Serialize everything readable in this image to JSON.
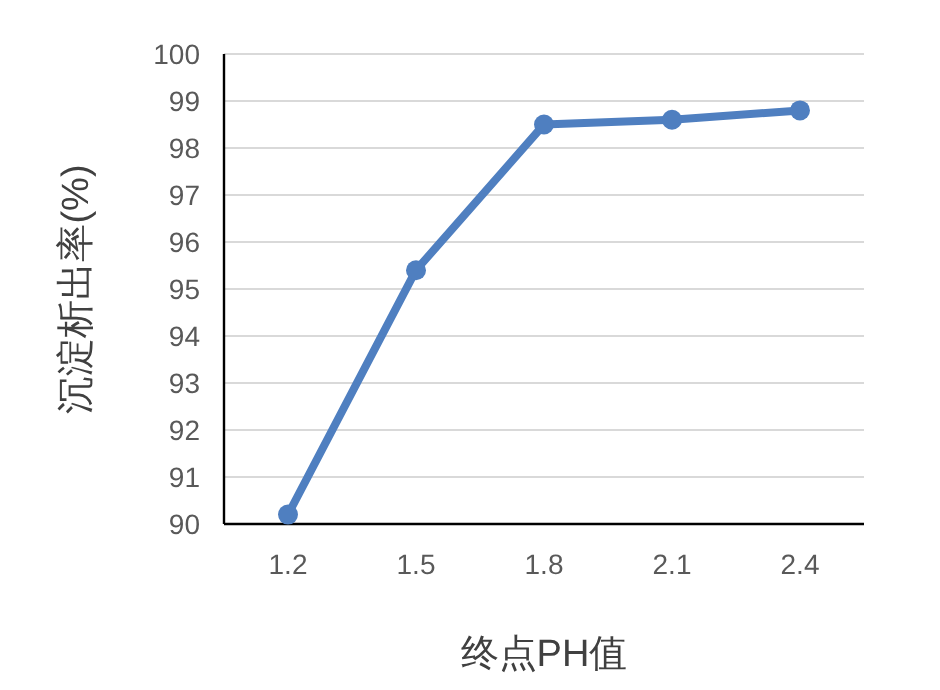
{
  "chart_data": {
    "type": "line",
    "xlabel": "终点PH值",
    "ylabel": "沉淀析出率(%)",
    "categories": [
      "1.2",
      "1.5",
      "1.8",
      "2.1",
      "2.4"
    ],
    "series": [
      {
        "color": "#4f7fc0",
        "values": [
          90.2,
          95.4,
          98.5,
          98.6,
          98.8
        ]
      }
    ],
    "ylim": [
      90,
      100
    ],
    "yticks": [
      90,
      91,
      92,
      93,
      94,
      95,
      96,
      97,
      98,
      99,
      100
    ],
    "grid": "y",
    "marker": "circle"
  }
}
